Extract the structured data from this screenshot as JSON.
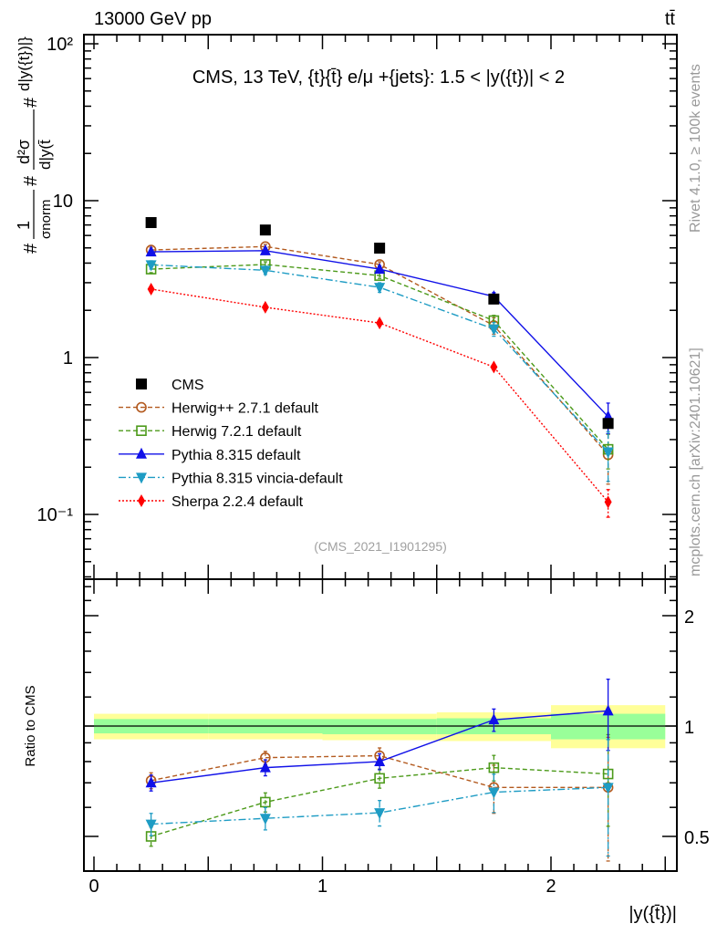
{
  "header": {
    "left": "13000 GeV pp",
    "right": "tt̄"
  },
  "side_labels": {
    "rivet": "Rivet 4.1.0, ≥ 100k events",
    "mcplots": "mcplots.cern.ch [arXiv:2401.10621]"
  },
  "watermark": "(CMS_2021_I1901295)",
  "chart_data": [
    {
      "type": "line",
      "title": "CMS, 13 TeV, {t}{t̄} e/μ +{jets}: 1.5 < |y({t})| < 2",
      "ylabel": {
        "frac1_num": "1",
        "frac1_den": "σnorm",
        "frac2_num": "d²σ",
        "frac2_den": "d|y(t̄",
        "tail": "d|y({t})|}",
        "hash1": "#",
        "hash2": "#",
        "hash3": "#"
      },
      "yscale": "log",
      "ylim": [
        0.039,
        112
      ],
      "xlim": [
        -0.04,
        2.55
      ],
      "ytick_labels": [
        {
          "value": 100,
          "label": "10²"
        },
        {
          "value": 10,
          "label": "10"
        },
        {
          "value": 1,
          "label": "1"
        },
        {
          "value": 0.1,
          "label": "10⁻¹"
        }
      ],
      "x": [
        0.25,
        0.75,
        1.25,
        1.75,
        2.25
      ],
      "bin_edges": [
        0,
        0.5,
        1,
        1.5,
        2,
        2.5
      ],
      "legend_position": "bottom-left",
      "series": [
        {
          "name": "CMS",
          "color": "#000000",
          "marker": "square",
          "line": "none",
          "values": [
            7.25,
            6.5,
            4.98,
            2.36,
            0.38
          ],
          "rel_err": [
            0.01,
            0.01,
            0.01,
            0.02,
            0.03
          ]
        },
        {
          "name": "Herwig++ 2.7.1 default",
          "color": "#b35a1f",
          "marker": "open-circle",
          "line": "dashed",
          "values": [
            4.85,
            5.1,
            3.92,
            1.6,
            0.24
          ],
          "rel_err": [
            0.04,
            0.03,
            0.04,
            0.12,
            0.35
          ]
        },
        {
          "name": "Herwig 7.2.1 default",
          "color": "#4c9a1a",
          "marker": "open-square",
          "line": "dashed",
          "values": [
            3.66,
            3.92,
            3.33,
            1.72,
            0.26
          ],
          "rel_err": [
            0.05,
            0.04,
            0.04,
            0.08,
            0.25
          ]
        },
        {
          "name": "Pythia 8.315 default",
          "color": "#1010e8",
          "marker": "triangle-up",
          "line": "solid",
          "values": [
            4.72,
            4.8,
            3.66,
            2.45,
            0.42
          ],
          "rel_err": [
            0.04,
            0.04,
            0.05,
            0.06,
            0.22
          ]
        },
        {
          "name": "Pythia 8.315 vincia-default",
          "color": "#1e9cc4",
          "marker": "triangle-down",
          "line": "dashdot",
          "values": [
            3.9,
            3.6,
            2.8,
            1.52,
            0.25
          ],
          "rel_err": [
            0.06,
            0.06,
            0.07,
            0.1,
            0.35
          ]
        },
        {
          "name": "Sherpa 2.2.4 default",
          "color": "#ff0000",
          "marker": "diamond",
          "line": "dotted",
          "values": [
            2.73,
            2.09,
            1.66,
            0.87,
            0.12
          ],
          "rel_err": [
            0.02,
            0.02,
            0.02,
            0.04,
            0.2
          ]
        }
      ]
    },
    {
      "type": "line",
      "ylabel": "Ratio to CMS",
      "xlabel": "|y({t̄})|",
      "yscale": "log",
      "ylim": [
        0.4,
        2.5
      ],
      "xlim": [
        -0.04,
        2.55
      ],
      "xtick_labels": [
        {
          "value": 0,
          "label": "0"
        },
        {
          "value": 1,
          "label": "1"
        },
        {
          "value": 2,
          "label": "2"
        }
      ],
      "ytick_labels": [
        {
          "value": 2,
          "label": "2"
        },
        {
          "value": 1,
          "label": "1"
        },
        {
          "value": 0.5,
          "label": "0.5"
        }
      ],
      "x": [
        0.25,
        0.75,
        1.25,
        1.75,
        2.25
      ],
      "band_colors": {
        "outer": "#ffff99",
        "inner": "#99ff99"
      },
      "band_outer": [
        [
          0.92,
          1.08
        ],
        [
          0.92,
          1.08
        ],
        [
          0.915,
          1.08
        ],
        [
          0.91,
          1.09
        ],
        [
          0.87,
          1.14
        ]
      ],
      "band_inner": [
        [
          0.955,
          1.045
        ],
        [
          0.955,
          1.045
        ],
        [
          0.95,
          1.045
        ],
        [
          0.95,
          1.05
        ],
        [
          0.92,
          1.08
        ]
      ],
      "series": [
        {
          "name": "Herwig++ 2.7.1 default",
          "values": [
            0.71,
            0.82,
            0.83,
            0.68,
            0.68
          ],
          "rel_err": [
            0.05,
            0.04,
            0.05,
            0.15,
            0.37
          ]
        },
        {
          "name": "Herwig 7.2.1 default",
          "values": [
            0.5,
            0.62,
            0.72,
            0.77,
            0.74
          ],
          "rel_err": [
            0.06,
            0.06,
            0.06,
            0.08,
            0.28
          ]
        },
        {
          "name": "Pythia 8.315 default",
          "values": [
            0.7,
            0.77,
            0.8,
            1.04,
            1.1
          ],
          "rel_err": [
            0.05,
            0.05,
            0.05,
            0.07,
            0.22
          ]
        },
        {
          "name": "Pythia 8.315 vincia-default",
          "values": [
            0.54,
            0.56,
            0.58,
            0.66,
            0.68
          ],
          "rel_err": [
            0.07,
            0.07,
            0.08,
            0.12,
            0.35
          ]
        }
      ]
    }
  ]
}
